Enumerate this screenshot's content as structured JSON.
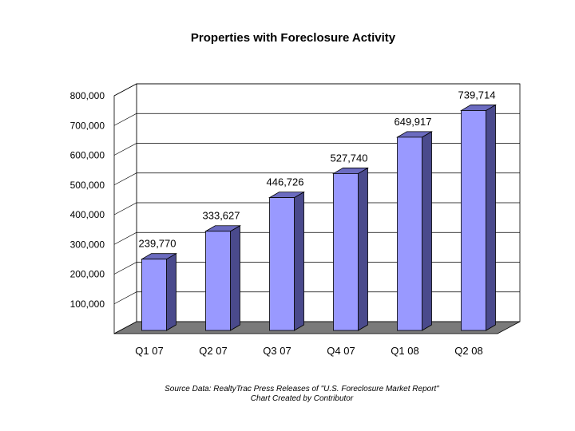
{
  "chart_data": {
    "type": "bar",
    "title": "Properties with Foreclosure Activity",
    "xlabel": "",
    "ylabel": "",
    "categories": [
      "Q1 07",
      "Q2 07",
      "Q3 07",
      "Q4 07",
      "Q1 08",
      "Q2 08"
    ],
    "values": [
      239770,
      333627,
      446726,
      527740,
      649917,
      739714
    ],
    "data_labels": [
      "239,770",
      "333,627",
      "446,726",
      "527,740",
      "649,917",
      "739,714"
    ],
    "ylim": [
      0,
      800000
    ],
    "yticks": [
      100000,
      200000,
      300000,
      400000,
      500000,
      600000,
      700000,
      800000
    ],
    "ytick_labels": [
      "100,000",
      "200,000",
      "300,000",
      "400,000",
      "500,000",
      "600,000",
      "700,000",
      "800,000"
    ],
    "grid": true,
    "style": "3d-bar",
    "colors": {
      "bar_front": "#9999ff",
      "bar_side": "#4a4a8c",
      "bar_top": "#6b6bc0",
      "floor": "#7a7a7a",
      "wall": "#ffffff",
      "grid": "#000000"
    }
  },
  "footer": {
    "source_line1": "Source Data: RealtyTrac Press Releases of \"U.S. Foreclosure Market Report\"",
    "source_line2": "Chart Created by Contributor"
  }
}
